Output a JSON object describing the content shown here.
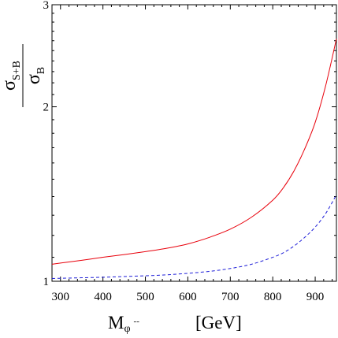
{
  "chart_data": {
    "type": "line",
    "title": "",
    "xlabel": {
      "symbol": "M",
      "subscript": "φ",
      "superscript": "--",
      "unit": "[GeV]"
    },
    "ylabel": {
      "numerator": "σ",
      "numerator_subscript": "S+B",
      "denominator": "σ",
      "denominator_subscript": "B"
    },
    "xlim": [
      280,
      950
    ],
    "ylim": [
      1,
      3
    ],
    "y_scale": "log",
    "grid": false,
    "legend": "none",
    "x_ticks": [
      300,
      400,
      500,
      600,
      700,
      800,
      900
    ],
    "y_ticks": [
      1,
      2,
      3
    ],
    "series": [
      {
        "color": "#e8000b",
        "style": "solid",
        "x": [
          280,
          300,
          350,
          400,
          450,
          500,
          550,
          600,
          650,
          700,
          750,
          800,
          825,
          850,
          875,
          900,
          925,
          950
        ],
        "y": [
          1.07,
          1.075,
          1.087,
          1.1,
          1.112,
          1.125,
          1.14,
          1.16,
          1.19,
          1.23,
          1.29,
          1.38,
          1.45,
          1.55,
          1.69,
          1.88,
          2.18,
          2.62
        ]
      },
      {
        "color": "#1d1dd8",
        "style": "dashed",
        "x": [
          280,
          300,
          350,
          400,
          450,
          500,
          550,
          600,
          650,
          700,
          750,
          800,
          825,
          850,
          875,
          900,
          925,
          950
        ],
        "y": [
          1.011,
          1.012,
          1.014,
          1.016,
          1.019,
          1.022,
          1.026,
          1.032,
          1.04,
          1.052,
          1.07,
          1.1,
          1.12,
          1.15,
          1.19,
          1.24,
          1.31,
          1.41
        ]
      }
    ]
  }
}
